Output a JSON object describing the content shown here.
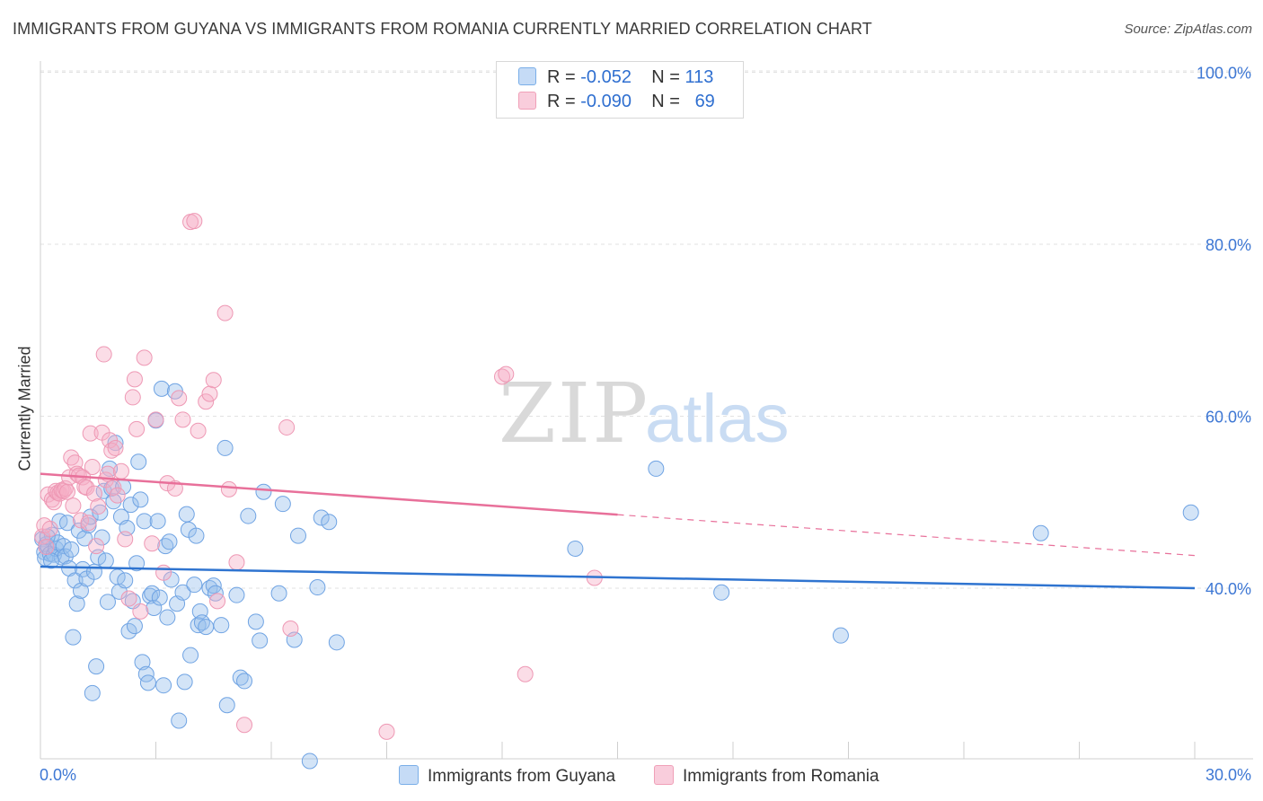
{
  "header": {
    "title": "IMMIGRANTS FROM GUYANA VS IMMIGRANTS FROM ROMANIA CURRENTLY MARRIED CORRELATION CHART",
    "source": "Source: ZipAtlas.com"
  },
  "watermark": {
    "zip": "ZIP",
    "atlas": "atlas"
  },
  "legend": {
    "rows": [
      {
        "r_label": "R =",
        "r_value": "-0.052",
        "n_label": "N =",
        "n_value": "113",
        "color": "#7aaee8"
      },
      {
        "r_label": "R =",
        "r_value": "-0.090",
        "n_label": "N =",
        "n_value": "69",
        "color": "#f0a0b8"
      }
    ]
  },
  "chart_data": {
    "type": "scatter",
    "title": "IMMIGRANTS FROM GUYANA VS IMMIGRANTS FROM ROMANIA CURRENTLY MARRIED CORRELATION CHART",
    "xlabel": "",
    "ylabel": "Currently Married",
    "xlim": [
      0,
      30
    ],
    "ylim": [
      20,
      102
    ],
    "x_tick_labels": [
      "0.0%",
      "30.0%"
    ],
    "y_ticks": [
      40,
      60,
      80,
      100
    ],
    "y_tick_labels": [
      "40.0%",
      "60.0%",
      "80.0%",
      "100.0%"
    ],
    "grid": true,
    "legend_position": "top-center",
    "series": [
      {
        "name": "Immigrants from Guyana",
        "color": "#7aaee8",
        "line_color": "#2f74d0",
        "trend": {
          "x": [
            0,
            30
          ],
          "y": [
            42.5,
            40.0
          ],
          "dashed_from": null
        },
        "points": [
          [
            0.05,
            45.7
          ],
          [
            0.1,
            44.2
          ],
          [
            0.12,
            43.5
          ],
          [
            0.15,
            45.1
          ],
          [
            0.2,
            44.8
          ],
          [
            0.25,
            44.0
          ],
          [
            0.3,
            46.2
          ],
          [
            0.35,
            43.9
          ],
          [
            0.4,
            44.6
          ],
          [
            0.45,
            45.3
          ],
          [
            0.5,
            47.8
          ],
          [
            0.55,
            43.6
          ],
          [
            0.6,
            44.9
          ],
          [
            0.65,
            43.7
          ],
          [
            0.7,
            47.6
          ],
          [
            0.75,
            42.3
          ],
          [
            0.8,
            44.5
          ],
          [
            0.85,
            34.3
          ],
          [
            0.9,
            40.9
          ],
          [
            0.95,
            38.2
          ],
          [
            1.0,
            46.7
          ],
          [
            1.05,
            39.7
          ],
          [
            1.1,
            42.2
          ],
          [
            1.15,
            45.8
          ],
          [
            1.2,
            41.1
          ],
          [
            1.25,
            47.3
          ],
          [
            1.3,
            48.3
          ],
          [
            1.35,
            27.8
          ],
          [
            1.4,
            41.9
          ],
          [
            1.45,
            30.9
          ],
          [
            1.5,
            43.6
          ],
          [
            1.55,
            48.8
          ],
          [
            1.6,
            45.9
          ],
          [
            1.65,
            51.3
          ],
          [
            1.7,
            43.2
          ],
          [
            1.75,
            38.4
          ],
          [
            1.8,
            53.9
          ],
          [
            1.85,
            51.6
          ],
          [
            1.9,
            50.1
          ],
          [
            1.95,
            56.9
          ],
          [
            2.0,
            41.3
          ],
          [
            2.05,
            39.6
          ],
          [
            2.1,
            48.3
          ],
          [
            2.15,
            51.8
          ],
          [
            2.2,
            40.9
          ],
          [
            2.25,
            47.0
          ],
          [
            2.3,
            35.0
          ],
          [
            2.35,
            49.7
          ],
          [
            2.4,
            38.5
          ],
          [
            2.45,
            35.6
          ],
          [
            2.5,
            42.9
          ],
          [
            2.55,
            54.7
          ],
          [
            2.6,
            50.3
          ],
          [
            2.65,
            31.4
          ],
          [
            2.7,
            47.8
          ],
          [
            2.75,
            30.0
          ],
          [
            2.8,
            29.0
          ],
          [
            2.85,
            39.1
          ],
          [
            2.9,
            39.4
          ],
          [
            2.95,
            37.7
          ],
          [
            3.0,
            59.5
          ],
          [
            3.05,
            47.8
          ],
          [
            3.1,
            38.9
          ],
          [
            3.15,
            63.2
          ],
          [
            3.2,
            28.7
          ],
          [
            3.25,
            44.9
          ],
          [
            3.3,
            36.6
          ],
          [
            3.35,
            45.4
          ],
          [
            3.4,
            41.0
          ],
          [
            3.5,
            62.9
          ],
          [
            3.55,
            38.2
          ],
          [
            3.6,
            24.6
          ],
          [
            3.7,
            39.5
          ],
          [
            3.75,
            29.1
          ],
          [
            3.8,
            48.6
          ],
          [
            3.85,
            46.8
          ],
          [
            3.9,
            32.2
          ],
          [
            4.0,
            40.4
          ],
          [
            4.05,
            46.1
          ],
          [
            4.1,
            35.7
          ],
          [
            4.15,
            37.3
          ],
          [
            4.2,
            36.0
          ],
          [
            4.3,
            35.5
          ],
          [
            4.4,
            40.0
          ],
          [
            4.5,
            40.3
          ],
          [
            4.55,
            39.4
          ],
          [
            4.7,
            35.7
          ],
          [
            4.8,
            56.3
          ],
          [
            4.85,
            26.4
          ],
          [
            5.1,
            39.2
          ],
          [
            5.2,
            29.6
          ],
          [
            5.3,
            29.2
          ],
          [
            5.4,
            48.4
          ],
          [
            5.6,
            36.1
          ],
          [
            5.7,
            33.9
          ],
          [
            5.8,
            51.2
          ],
          [
            6.2,
            39.4
          ],
          [
            6.3,
            49.8
          ],
          [
            6.6,
            34.0
          ],
          [
            6.7,
            46.1
          ],
          [
            7.0,
            19.9
          ],
          [
            7.2,
            40.1
          ],
          [
            7.3,
            48.2
          ],
          [
            7.5,
            47.7
          ],
          [
            7.7,
            33.7
          ],
          [
            13.9,
            44.6
          ],
          [
            16.0,
            53.9
          ],
          [
            17.7,
            39.5
          ],
          [
            20.8,
            34.5
          ],
          [
            26.0,
            46.4
          ],
          [
            29.9,
            48.8
          ],
          [
            0.18,
            46.0
          ],
          [
            0.28,
            43.2
          ]
        ]
      },
      {
        "name": "Immigrants from Romania",
        "color": "#f0a0b8",
        "line_color": "#e8709a",
        "trend": {
          "x": [
            0,
            30
          ],
          "y": [
            53.3,
            43.8
          ],
          "dashed_from": 15
        },
        "points": [
          [
            0.05,
            46.0
          ],
          [
            0.1,
            47.3
          ],
          [
            0.15,
            44.8
          ],
          [
            0.2,
            50.9
          ],
          [
            0.25,
            46.9
          ],
          [
            0.3,
            50.3
          ],
          [
            0.35,
            50.0
          ],
          [
            0.4,
            51.3
          ],
          [
            0.45,
            51.1
          ],
          [
            0.5,
            51.0
          ],
          [
            0.55,
            51.4
          ],
          [
            0.6,
            51.3
          ],
          [
            0.65,
            51.6
          ],
          [
            0.7,
            51.2
          ],
          [
            0.75,
            52.9
          ],
          [
            0.8,
            55.2
          ],
          [
            0.85,
            49.6
          ],
          [
            0.9,
            54.6
          ],
          [
            0.95,
            53.3
          ],
          [
            1.0,
            53.1
          ],
          [
            1.05,
            47.9
          ],
          [
            1.1,
            52.9
          ],
          [
            1.15,
            51.8
          ],
          [
            1.2,
            51.7
          ],
          [
            1.25,
            47.6
          ],
          [
            1.3,
            58.0
          ],
          [
            1.35,
            54.1
          ],
          [
            1.4,
            51.0
          ],
          [
            1.45,
            44.9
          ],
          [
            1.5,
            49.5
          ],
          [
            1.6,
            58.1
          ],
          [
            1.65,
            67.2
          ],
          [
            1.7,
            52.6
          ],
          [
            1.75,
            53.3
          ],
          [
            1.8,
            57.2
          ],
          [
            1.85,
            56.0
          ],
          [
            1.9,
            51.7
          ],
          [
            1.95,
            56.3
          ],
          [
            2.0,
            50.8
          ],
          [
            2.1,
            53.6
          ],
          [
            2.2,
            45.7
          ],
          [
            2.3,
            38.8
          ],
          [
            2.4,
            62.2
          ],
          [
            2.45,
            64.3
          ],
          [
            2.5,
            58.5
          ],
          [
            2.6,
            37.3
          ],
          [
            2.7,
            66.8
          ],
          [
            2.9,
            45.2
          ],
          [
            3.0,
            59.6
          ],
          [
            3.2,
            41.8
          ],
          [
            3.3,
            52.2
          ],
          [
            3.5,
            51.6
          ],
          [
            3.6,
            62.1
          ],
          [
            3.7,
            59.6
          ],
          [
            3.9,
            82.6
          ],
          [
            4.0,
            82.7
          ],
          [
            4.1,
            58.3
          ],
          [
            4.3,
            61.7
          ],
          [
            4.4,
            62.6
          ],
          [
            4.5,
            64.2
          ],
          [
            4.6,
            38.5
          ],
          [
            4.8,
            72.0
          ],
          [
            4.9,
            51.5
          ],
          [
            5.1,
            43.0
          ],
          [
            5.3,
            24.1
          ],
          [
            6.4,
            58.7
          ],
          [
            6.5,
            35.3
          ],
          [
            12.0,
            64.6
          ],
          [
            12.1,
            64.9
          ]
        ]
      }
    ],
    "extra_points_romania": [
      [
        9.0,
        23.3
      ],
      [
        12.6,
        30.0
      ],
      [
        14.4,
        41.2
      ]
    ]
  },
  "bottom_legend": [
    {
      "label": "Immigrants from Guyana",
      "color": "#7aaee8"
    },
    {
      "label": "Immigrants from Romania",
      "color": "#f0a0b8"
    }
  ]
}
